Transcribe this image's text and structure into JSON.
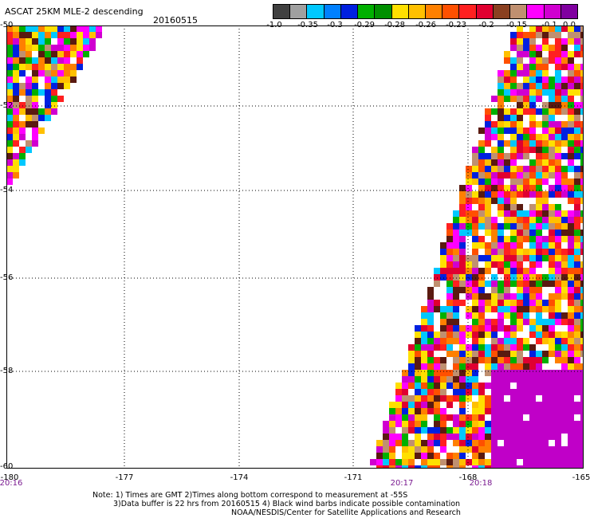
{
  "header": {
    "title": "ASCAT 25KM MLE-2 descending",
    "date": "20160515"
  },
  "colorbar": {
    "colors": [
      "#404040",
      "#a0a0a0",
      "#00c8ff",
      "#0080ff",
      "#0020e0",
      "#00b000",
      "#009000",
      "#ffe000",
      "#ffc000",
      "#ff8000",
      "#ff5000",
      "#ff2020",
      "#e00030",
      "#8a4020",
      "#c09070",
      "#ff00ff",
      "#d000d0",
      "#8000a0"
    ],
    "labels": [
      "-1.0",
      "-0.35",
      "-0.3",
      "-0.29",
      "-0.28",
      "-0.26",
      "-0.23",
      "-0.2",
      "-0.15",
      "-0.1",
      "0.0"
    ]
  },
  "axes": {
    "lat_labels": [
      "-50",
      "-52",
      "-54",
      "-56",
      "-58",
      "-60"
    ],
    "lon_labels": [
      "-180",
      "-177",
      "-174",
      "-171",
      "-168",
      "-165"
    ],
    "time_labels": [
      "20:16",
      "20:17",
      "20:18"
    ]
  },
  "notes": {
    "line1": "Note: 1) Times are GMT 2)Times along bottom correspond to measurement at -55S",
    "line2": "3)Data buffer is 22 hrs from 20160515 4) Black wind barbs indicate possible contamination",
    "line3": "NOAA/NESDIS/Center for Satellite Applications and Research"
  }
}
